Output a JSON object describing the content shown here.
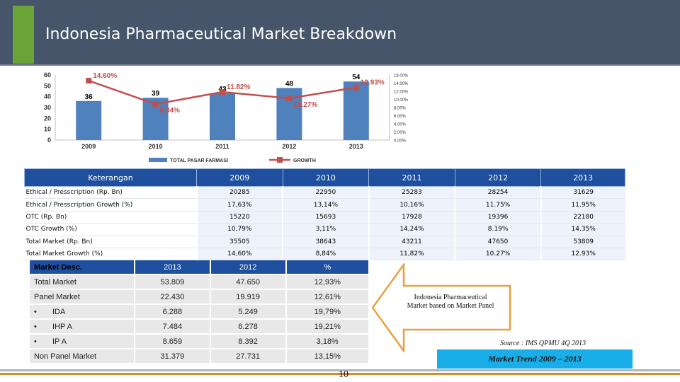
{
  "header": {
    "title": "Indonesia Pharmaceutical Market Breakdown"
  },
  "colors": {
    "header": "#47556b",
    "accent": "#6aa338",
    "bar": "#4f81bd",
    "line": "#c0504d",
    "table_header": "#1f4f9f",
    "trend_box": "#1aaee8"
  },
  "chart_data": {
    "type": "bar",
    "categories": [
      "2009",
      "2010",
      "2011",
      "2012",
      "2013"
    ],
    "series": [
      {
        "name": "TOTAL PASAR FARMASI",
        "type": "bar",
        "values": [
          36,
          39,
          43,
          48,
          54
        ],
        "labels": [
          "36",
          "39",
          "43",
          "48",
          "54"
        ]
      },
      {
        "name": "GROWTH",
        "type": "line",
        "values": [
          14.6,
          8.84,
          11.82,
          10.27,
          12.93
        ],
        "labels": [
          "14.60%",
          "8.84%",
          "11.82%",
          "10.27%",
          "12.93%"
        ]
      }
    ],
    "left_ticks": [
      "0",
      "10",
      "20",
      "30",
      "40",
      "50",
      "60"
    ],
    "right_ticks": [
      "0.00%",
      "2.00%",
      "4.00%",
      "6.00%",
      "8.00%",
      "10.00%",
      "12.00%",
      "14.00%",
      "16.00%"
    ],
    "ylim": [
      0,
      60
    ],
    "y2lim": [
      0,
      16
    ]
  },
  "table1": {
    "headers": [
      "Keterangan",
      "2009",
      "2010",
      "2011",
      "2012",
      "2013"
    ],
    "rows": [
      [
        "Ethical / Presscription (Rp. Bn)",
        "20285",
        "22950",
        "25283",
        "28254",
        "31629"
      ],
      [
        "Ethical / Presscription Growth (%)",
        "17,63%",
        "13,14%",
        "10,16%",
        "11.75%",
        "11.95%"
      ],
      [
        "OTC (Rp. Bn)",
        "15220",
        "15693",
        "17928",
        "19396",
        "22180"
      ],
      [
        "OTC Growth (%)",
        "10,79%",
        "3,11%",
        "14,24%",
        "8.19%",
        "14.35%"
      ],
      [
        "Total Market (Rp. Bn)",
        "35505",
        "38643",
        "43211",
        "47650",
        "53809"
      ],
      [
        "Total Market Growth (%)",
        "14,60%",
        "8,84%",
        "11,82%",
        "10.27%",
        "12.93%"
      ]
    ]
  },
  "table2": {
    "headers": [
      "Market Desc.",
      "2013",
      "2012",
      "%"
    ],
    "bullet": "•",
    "rows": [
      {
        "label": "Total Market",
        "bullet": false,
        "v2013": "53.809",
        "v2012": "47.650",
        "pct": "12,93%"
      },
      {
        "label": "Panel Market",
        "bullet": false,
        "v2013": "22.430",
        "v2012": "19.919",
        "pct": "12,61%"
      },
      {
        "label": "IDA",
        "bullet": true,
        "v2013": "6.288",
        "v2012": "5.249",
        "pct": "19,79%"
      },
      {
        "label": "IHP A",
        "bullet": true,
        "v2013": "7.484",
        "v2012": "6.278",
        "pct": "19,21%"
      },
      {
        "label": "IP A",
        "bullet": true,
        "v2013": "8.659",
        "v2012": "8.392",
        "pct": "3,18%"
      },
      {
        "label": "Non Panel Market",
        "bullet": false,
        "v2013": "31.379",
        "v2012": "27.731",
        "pct": "13,15%"
      }
    ]
  },
  "callout": {
    "line1": "Indonesia Pharmaceutical",
    "line2": "Market based on Market Panel"
  },
  "source": "Source : IMS QPMU 4Q 2013",
  "trend_label": "Market Trend 2009 – 2013",
  "page_number": "10"
}
